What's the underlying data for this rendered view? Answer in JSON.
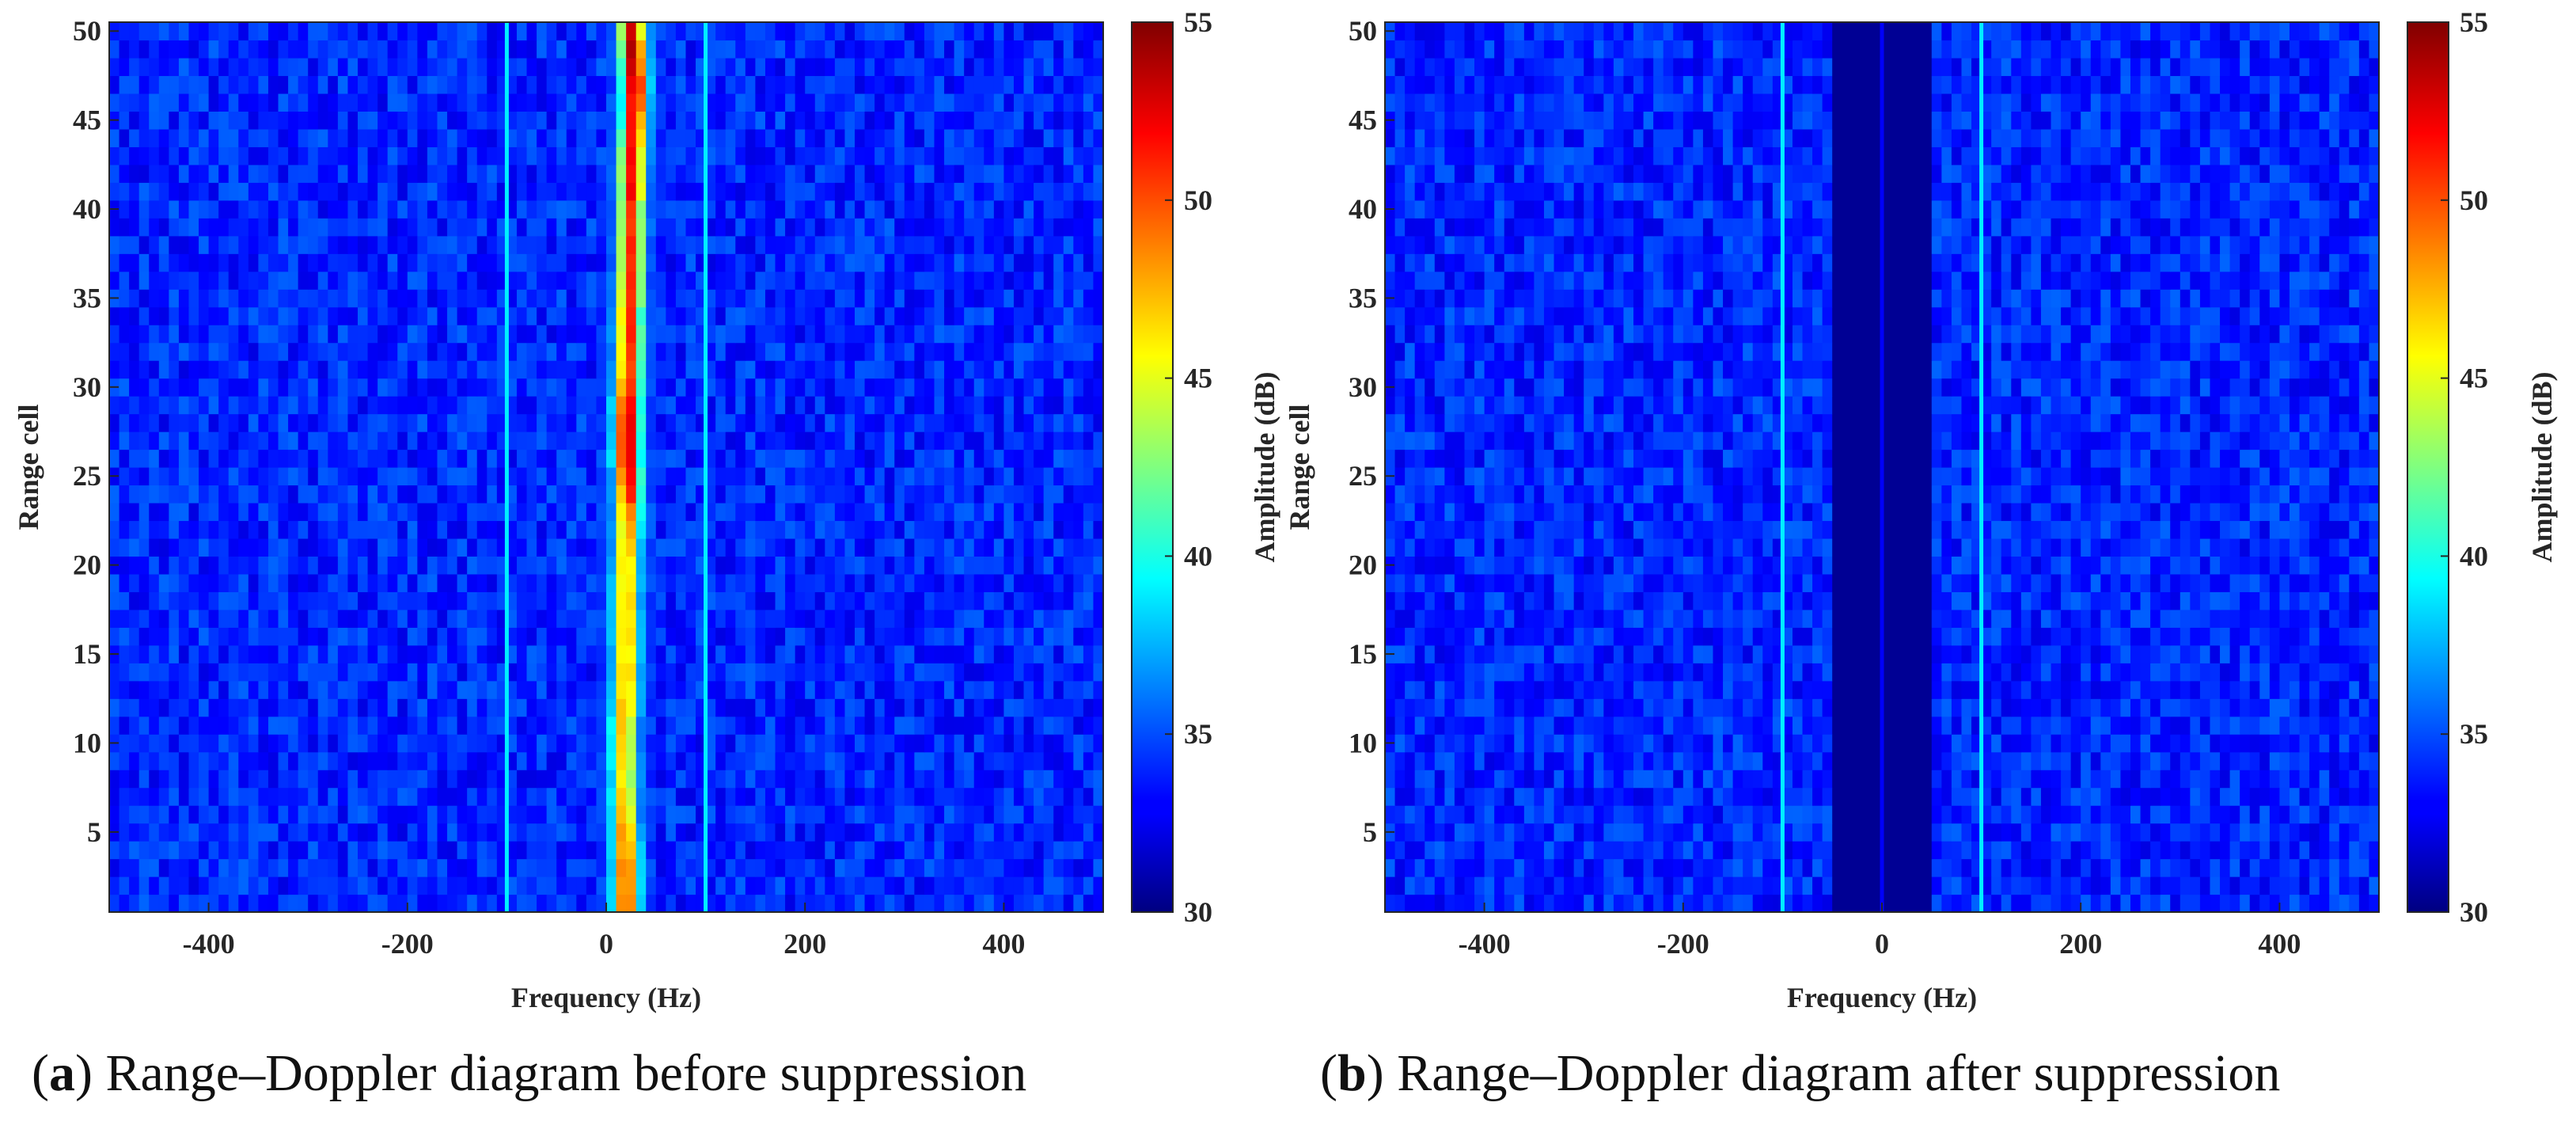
{
  "chart_data": [
    {
      "type": "heatmap",
      "panel_letter": "a",
      "caption": "Range–Doppler diagram before suppression",
      "xlabel": "Frequency (Hz)",
      "ylabel": "Range cell",
      "colorbar_label": "Amplitude (dB)",
      "xlim": [
        -500,
        500
      ],
      "ylim": [
        0.5,
        50.5
      ],
      "xticks": [
        -400,
        -200,
        0,
        200,
        400
      ],
      "yticks": [
        5,
        10,
        15,
        20,
        25,
        30,
        35,
        40,
        45,
        50
      ],
      "clim": [
        30,
        55
      ],
      "cticks": [
        30,
        35,
        40,
        45,
        50,
        55
      ],
      "colormap": "jet",
      "background_level_db": 34,
      "frequency_bin_hz": 10,
      "range_cells": 50,
      "clutter_ridge": {
        "description": "sea clutter ridge near zero Doppler",
        "center_freq_hz": [
          20,
          20,
          20,
          20,
          19,
          18,
          18,
          18,
          18,
          18,
          18,
          19,
          20,
          20,
          20,
          20,
          20,
          20,
          20,
          20,
          21,
          22,
          22,
          22,
          22,
          21,
          21,
          21,
          21,
          22,
          23,
          23,
          23,
          23,
          24,
          24,
          25,
          25,
          25,
          25,
          26,
          26,
          26,
          27,
          28,
          29,
          29,
          28,
          27,
          26
        ],
        "peak_db": [
          51,
          51,
          51,
          50,
          49,
          48,
          47,
          47,
          47,
          47,
          48,
          48,
          48,
          48,
          48,
          48,
          48,
          48,
          48,
          48,
          48,
          49,
          50,
          52,
          53,
          54,
          54,
          54,
          53,
          52,
          51,
          51,
          51,
          51,
          51,
          51,
          51,
          51,
          51,
          51,
          52,
          52,
          52,
          52,
          52,
          53,
          54,
          54,
          54,
          53
        ]
      },
      "vertical_lines": [
        {
          "freq_hz": -100,
          "level_db": 39
        },
        {
          "freq_hz": 100,
          "level_db": 39
        }
      ],
      "suppression_band_hz": null
    },
    {
      "type": "heatmap",
      "panel_letter": "b",
      "caption": "Range–Doppler diagram after suppression",
      "xlabel": "Frequency (Hz)",
      "ylabel": "Range cell",
      "colorbar_label": "Amplitude (dB)",
      "xlim": [
        -500,
        500
      ],
      "ylim": [
        0.5,
        50.5
      ],
      "xticks": [
        -400,
        -200,
        0,
        200,
        400
      ],
      "yticks": [
        5,
        10,
        15,
        20,
        25,
        30,
        35,
        40,
        45,
        50
      ],
      "clim": [
        30,
        55
      ],
      "cticks": [
        30,
        35,
        40,
        45,
        50,
        55
      ],
      "colormap": "jet",
      "background_level_db": 34,
      "frequency_bin_hz": 10,
      "range_cells": 50,
      "clutter_ridge": null,
      "vertical_lines": [
        {
          "freq_hz": -100,
          "level_db": 39
        },
        {
          "freq_hz": 100,
          "level_db": 39
        },
        {
          "freq_hz": 0,
          "level_db": 33
        }
      ],
      "suppression_band_hz": [
        -55,
        55
      ],
      "suppression_level_db": 30.5
    }
  ]
}
